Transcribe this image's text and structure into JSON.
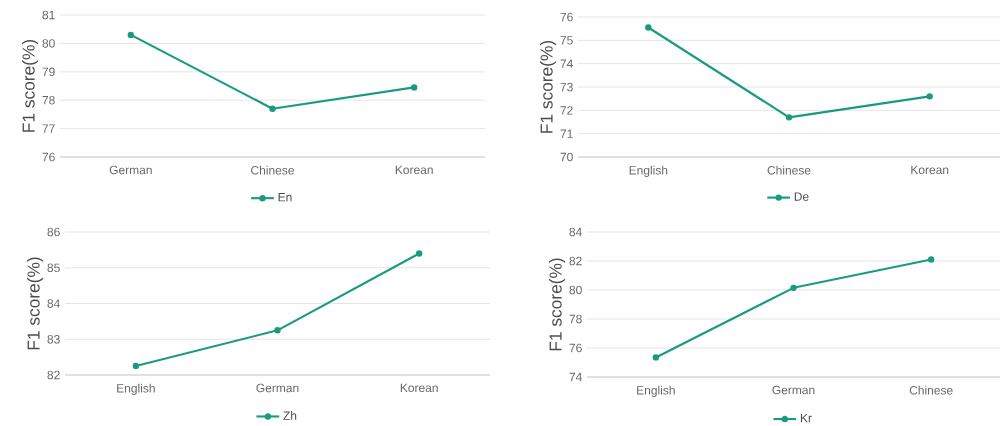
{
  "chart_data": [
    {
      "type": "line",
      "categories": [
        "German",
        "Chinese",
        "Korean"
      ],
      "ylabel": "F1 score(%)",
      "ylim": [
        76,
        81
      ],
      "yticks": [
        76,
        77,
        78,
        79,
        80,
        81
      ],
      "grid": "y",
      "legend": "bottom",
      "marker": "circle",
      "series": [
        {
          "name": "En",
          "color": "#1a9a80",
          "values": [
            80.3,
            77.7,
            78.45
          ]
        }
      ]
    },
    {
      "type": "line",
      "categories": [
        "English",
        "Chinese",
        "Korean"
      ],
      "ylabel": "F1 score(%)",
      "ylim": [
        70,
        76
      ],
      "yticks": [
        70,
        71,
        72,
        73,
        74,
        75,
        76
      ],
      "grid": "y",
      "legend": "bottom",
      "marker": "circle",
      "series": [
        {
          "name": "De",
          "color": "#1a9a80",
          "values": [
            75.55,
            71.7,
            72.6
          ]
        }
      ]
    },
    {
      "type": "line",
      "categories": [
        "English",
        "German",
        "Korean"
      ],
      "ylabel": "F1 score(%)",
      "ylim": [
        82,
        86
      ],
      "yticks": [
        82,
        83,
        84,
        85,
        86
      ],
      "grid": "y",
      "legend": "bottom",
      "marker": "circle",
      "series": [
        {
          "name": "Zh",
          "color": "#1a9a80",
          "values": [
            82.25,
            83.25,
            85.4
          ]
        }
      ]
    },
    {
      "type": "line",
      "categories": [
        "English",
        "German",
        "Chinese"
      ],
      "ylabel": "F1 score(%)",
      "ylim": [
        74,
        84
      ],
      "yticks": [
        74,
        76,
        78,
        80,
        82,
        84
      ],
      "grid": "y",
      "legend": "bottom",
      "marker": "circle",
      "series": [
        {
          "name": "Kr",
          "color": "#1a9a80",
          "values": [
            75.35,
            80.15,
            82.1
          ]
        }
      ]
    }
  ]
}
